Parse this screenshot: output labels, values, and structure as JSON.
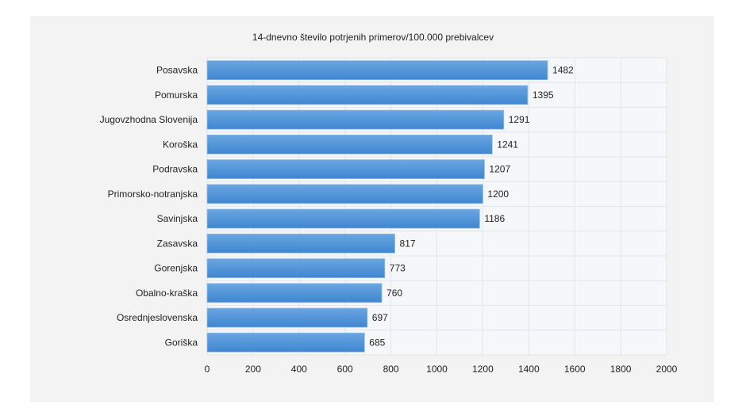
{
  "chart_data": {
    "type": "bar",
    "orientation": "horizontal",
    "title": "14-dnevno število potrjenih primerov/100.000 prebivalcev",
    "xlabel": "",
    "ylabel": "",
    "xlim": [
      0,
      2000
    ],
    "xticks": [
      0,
      200,
      400,
      600,
      800,
      1000,
      1200,
      1400,
      1600,
      1800,
      2000
    ],
    "grid": true,
    "bar_color": "#4a90d9",
    "categories": [
      "Posavska",
      "Pomurska",
      "Jugovzhodna Slovenija",
      "Koroška",
      "Podravska",
      "Primorsko-notranjska",
      "Savinjska",
      "Zasavska",
      "Gorenjska",
      "Obalno-kraška",
      "Osrednjeslovenska",
      "Goriška"
    ],
    "values": [
      1482,
      1395,
      1291,
      1241,
      1207,
      1200,
      1186,
      817,
      773,
      760,
      697,
      685
    ]
  }
}
